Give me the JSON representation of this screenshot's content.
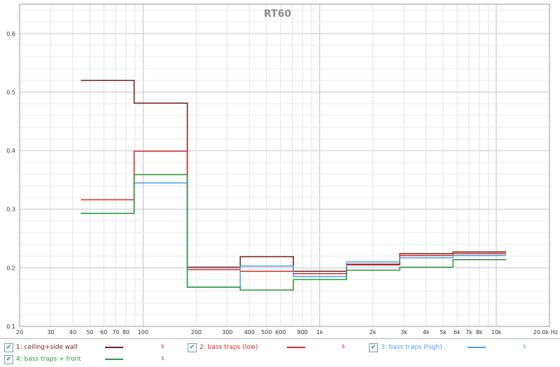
{
  "chart_data": {
    "type": "line",
    "title": "RT60",
    "xscale": "log",
    "xlim": [
      20,
      20000
    ],
    "ylim": [
      0.1,
      0.65
    ],
    "x_ticks": [
      {
        "v": 20,
        "label": "20"
      },
      {
        "v": 30,
        "label": "30"
      },
      {
        "v": 40,
        "label": "40"
      },
      {
        "v": 50,
        "label": "50"
      },
      {
        "v": 60,
        "label": "60"
      },
      {
        "v": 70,
        "label": "70"
      },
      {
        "v": 80,
        "label": "80"
      },
      {
        "v": 100,
        "label": "100"
      },
      {
        "v": 200,
        "label": "200"
      },
      {
        "v": 300,
        "label": "300"
      },
      {
        "v": 400,
        "label": "400"
      },
      {
        "v": 500,
        "label": "500"
      },
      {
        "v": 600,
        "label": "600"
      },
      {
        "v": 800,
        "label": "800"
      },
      {
        "v": 1000,
        "label": "1k"
      },
      {
        "v": 2000,
        "label": "2k"
      },
      {
        "v": 3000,
        "label": "3k"
      },
      {
        "v": 4000,
        "label": "4k"
      },
      {
        "v": 5000,
        "label": "5k"
      },
      {
        "v": 6000,
        "label": "6k"
      },
      {
        "v": 7000,
        "label": "7k"
      },
      {
        "v": 8000,
        "label": "8k"
      },
      {
        "v": 10000,
        "label": "10k"
      },
      {
        "v": 20000,
        "label": "20.0k Hz"
      }
    ],
    "y_ticks": [
      {
        "v": 0.1,
        "label": "0.1"
      },
      {
        "v": 0.2,
        "label": "0.2"
      },
      {
        "v": 0.3,
        "label": "0.3"
      },
      {
        "v": 0.4,
        "label": "0.4"
      },
      {
        "v": 0.5,
        "label": "0.5"
      },
      {
        "v": 0.6,
        "label": "0.6"
      }
    ],
    "band_edges_hz": [
      44.5,
      89,
      178,
      355,
      710,
      1420,
      2840,
      5680,
      11360
    ],
    "grid": true,
    "legend_position": "bottom",
    "series": [
      {
        "name": "1: ceiling+side wall",
        "color": "#7a1a1a",
        "unit": "s",
        "values": [
          0.52,
          0.481,
          0.201,
          0.219,
          0.194,
          0.206,
          0.224,
          0.227
        ]
      },
      {
        "name": "2: bass traps (low)",
        "color": "#d42a2a",
        "unit": "s",
        "values": [
          0.316,
          0.399,
          0.197,
          0.194,
          0.19,
          0.205,
          0.221,
          0.224
        ]
      },
      {
        "name": "3: bass traps (high)",
        "color": "#4a9fe0",
        "unit": "s",
        "values": [
          0.293,
          0.345,
          0.167,
          0.203,
          0.185,
          0.21,
          0.217,
          0.221
        ]
      },
      {
        "name": "4: bass traps + front",
        "color": "#2a9a3a",
        "unit": "s",
        "values": [
          0.293,
          0.359,
          0.167,
          0.162,
          0.18,
          0.196,
          0.201,
          0.214
        ]
      }
    ]
  }
}
